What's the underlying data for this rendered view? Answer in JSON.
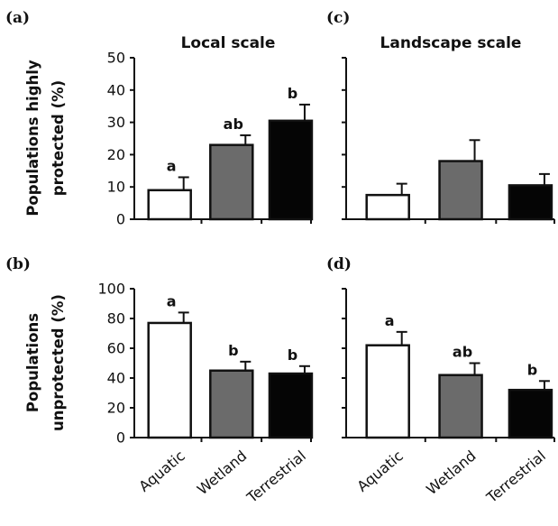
{
  "chart_data": [
    {
      "panel": "(a)",
      "type": "bar",
      "title": "Local scale",
      "ylabel": [
        "Populations highly",
        "protected (%)"
      ],
      "categories": [
        "Aquatic",
        "Wetland",
        "Terrestrial"
      ],
      "values": [
        9,
        23,
        30.5
      ],
      "errors": [
        4,
        3,
        5
      ],
      "significance": [
        "a",
        "ab",
        "b"
      ],
      "colors": [
        "#ffffff",
        "#6b6b6b",
        "#050505"
      ],
      "ylim": [
        0,
        50
      ],
      "yticks": [
        0,
        10,
        20,
        30,
        40,
        50
      ]
    },
    {
      "panel": "(c)",
      "type": "bar",
      "title": "Landscape scale",
      "categories": [
        "Aquatic",
        "Wetland",
        "Terrestrial"
      ],
      "values": [
        7.5,
        18,
        10.5
      ],
      "errors": [
        3.5,
        6.5,
        3.5
      ],
      "significance": [
        "",
        "",
        ""
      ],
      "colors": [
        "#ffffff",
        "#6b6b6b",
        "#050505"
      ],
      "ylim": [
        0,
        50
      ]
    },
    {
      "panel": "(b)",
      "type": "bar",
      "ylabel": [
        "Populations",
        "unprotected (%)"
      ],
      "categories": [
        "Aquatic",
        "Wetland",
        "Terrestrial"
      ],
      "values": [
        77,
        45,
        43
      ],
      "errors": [
        7,
        6,
        5
      ],
      "significance": [
        "a",
        "b",
        "b"
      ],
      "colors": [
        "#ffffff",
        "#6b6b6b",
        "#050505"
      ],
      "ylim": [
        0,
        100
      ],
      "yticks": [
        0,
        20,
        40,
        60,
        80,
        100
      ]
    },
    {
      "panel": "(d)",
      "type": "bar",
      "categories": [
        "Aquatic",
        "Wetland",
        "Terrestrial"
      ],
      "values": [
        62,
        42,
        32
      ],
      "errors": [
        9,
        8,
        6
      ],
      "significance": [
        "a",
        "ab",
        "b"
      ],
      "colors": [
        "#ffffff",
        "#6b6b6b",
        "#050505"
      ],
      "ylim": [
        0,
        100
      ]
    }
  ]
}
